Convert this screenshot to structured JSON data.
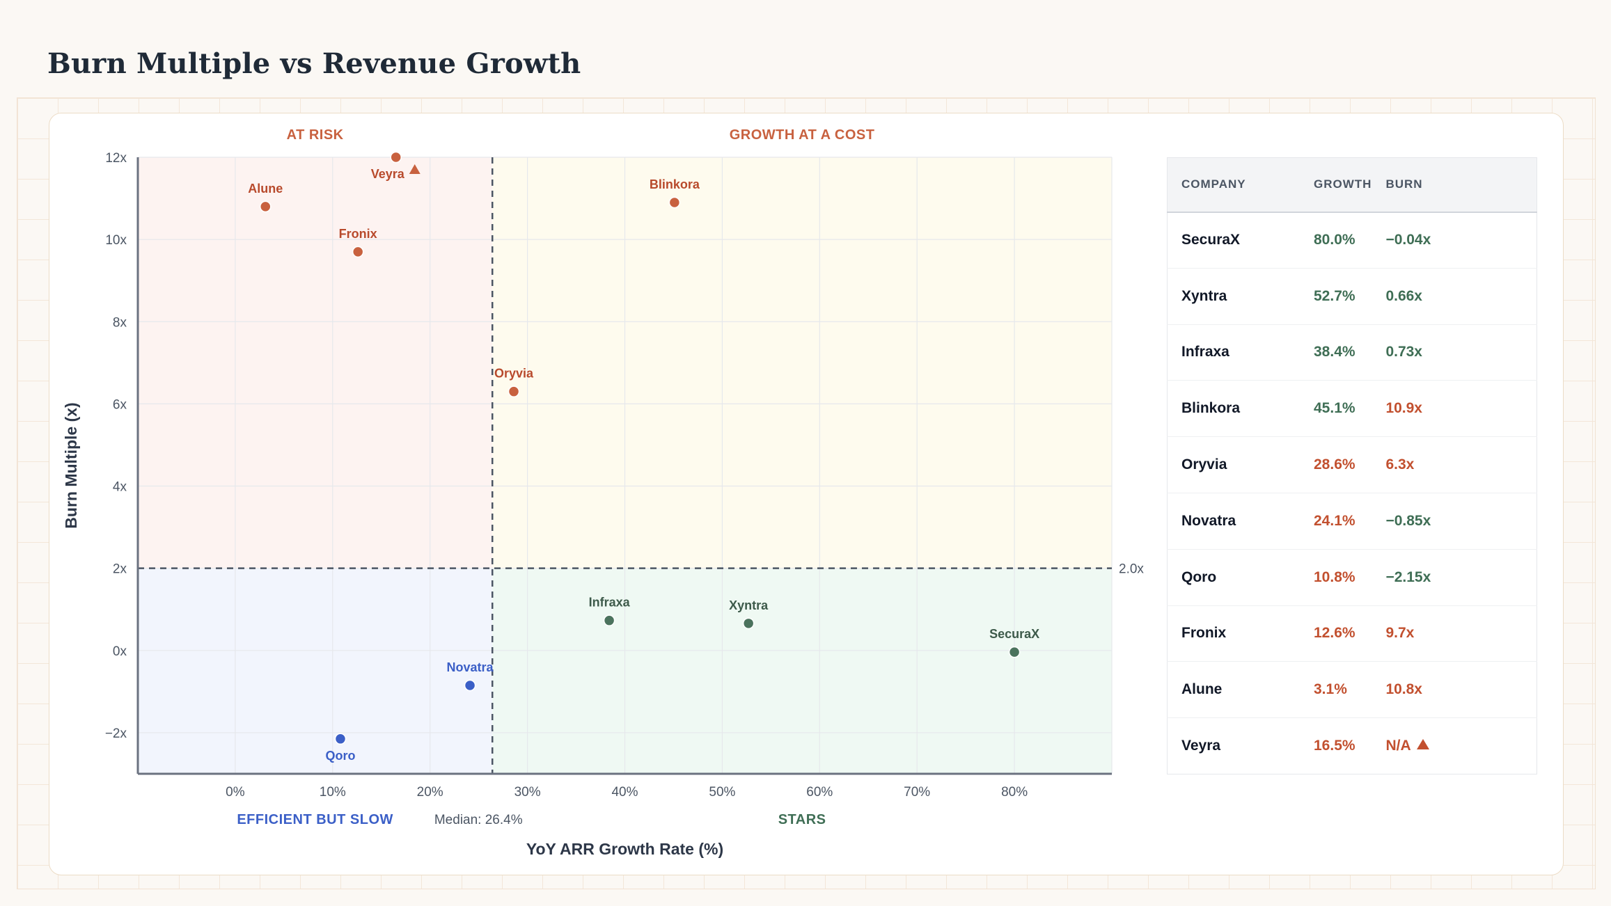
{
  "page": {
    "title": "Burn Multiple vs Revenue Growth"
  },
  "chart_data": {
    "type": "scatter",
    "title": "Burn Multiple vs Revenue Growth",
    "xlabel": "YoY ARR Growth Rate (%)",
    "ylabel": "Burn Multiple (x)",
    "xlim": [
      -10,
      90
    ],
    "ylim": [
      -3,
      12
    ],
    "x_ticks": [
      0,
      10,
      20,
      30,
      40,
      50,
      60,
      70,
      80
    ],
    "x_tick_labels": [
      "0%",
      "10%",
      "20%",
      "30%",
      "40%",
      "50%",
      "60%",
      "70%",
      "80%"
    ],
    "y_ticks": [
      -2,
      0,
      2,
      4,
      6,
      8,
      10,
      12
    ],
    "y_tick_labels": [
      "−2x",
      "0x",
      "2x",
      "4x",
      "6x",
      "8x",
      "10x",
      "12x"
    ],
    "grid": true,
    "median_growth": 26.4,
    "median_label": "Median: 26.4%",
    "burn_threshold": 2.0,
    "threshold_label": "2.0x",
    "quadrants": [
      {
        "label": "AT RISK",
        "color": "#c8613f",
        "fill": "#fdf3f1"
      },
      {
        "label": "GROWTH AT A COST",
        "color": "#c8613f",
        "fill": "#fefbee"
      },
      {
        "label": "EFFICIENT BUT SLOW",
        "color": "#3b5fc7",
        "fill": "#f2f5fd"
      },
      {
        "label": "STARS",
        "color": "#3f6e55",
        "fill": "#eff9f3"
      }
    ],
    "points": [
      {
        "name": "Alune",
        "x": 3.1,
        "y": 10.8,
        "quadrant": "risk"
      },
      {
        "name": "Veyra",
        "x": 16.5,
        "y": 12,
        "quadrant": "risk",
        "capped": true
      },
      {
        "name": "Fronix",
        "x": 12.6,
        "y": 9.7,
        "quadrant": "risk"
      },
      {
        "name": "Blinkora",
        "x": 45.1,
        "y": 10.9,
        "quadrant": "cost"
      },
      {
        "name": "Oryvia",
        "x": 28.6,
        "y": 6.3,
        "quadrant": "cost"
      },
      {
        "name": "Infraxa",
        "x": 38.4,
        "y": 0.73,
        "quadrant": "stars"
      },
      {
        "name": "Xyntra",
        "x": 52.7,
        "y": 0.66,
        "quadrant": "stars"
      },
      {
        "name": "SecuraX",
        "x": 80.0,
        "y": -0.04,
        "quadrant": "stars"
      },
      {
        "name": "Novatra",
        "x": 24.1,
        "y": -0.85,
        "quadrant": "slow"
      },
      {
        "name": "Qoro",
        "x": 10.8,
        "y": -2.15,
        "quadrant": "slow"
      }
    ],
    "colors": {
      "risk": "#c8613f",
      "cost": "#c8613f",
      "stars": "#4b735d",
      "slow": "#3b5fc7",
      "risk_label": "#b84a2c",
      "cost_label": "#b84a2c",
      "stars_label": "#3d5a4a",
      "slow_label": "#3b5fc7"
    }
  },
  "table": {
    "headers": [
      "COMPANY",
      "GROWTH",
      "BURN"
    ],
    "rows": [
      {
        "company": "SecuraX",
        "growth": "80.0%",
        "burn": "−0.04x",
        "growth_class": "good",
        "burn_class": "good",
        "warn": false
      },
      {
        "company": "Xyntra",
        "growth": "52.7%",
        "burn": "0.66x",
        "growth_class": "good",
        "burn_class": "good",
        "warn": false
      },
      {
        "company": "Infraxa",
        "growth": "38.4%",
        "burn": "0.73x",
        "growth_class": "good",
        "burn_class": "good",
        "warn": false
      },
      {
        "company": "Blinkora",
        "growth": "45.1%",
        "burn": "10.9x",
        "growth_class": "good",
        "burn_class": "bad",
        "warn": false
      },
      {
        "company": "Oryvia",
        "growth": "28.6%",
        "burn": "6.3x",
        "growth_class": "bad",
        "burn_class": "bad",
        "warn": false
      },
      {
        "company": "Novatra",
        "growth": "24.1%",
        "burn": "−0.85x",
        "growth_class": "bad",
        "burn_class": "good",
        "warn": false
      },
      {
        "company": "Qoro",
        "growth": "10.8%",
        "burn": "−2.15x",
        "growth_class": "bad",
        "burn_class": "good",
        "warn": false
      },
      {
        "company": "Fronix",
        "growth": "12.6%",
        "burn": "9.7x",
        "growth_class": "bad",
        "burn_class": "bad",
        "warn": false
      },
      {
        "company": "Alune",
        "growth": "3.1%",
        "burn": "10.8x",
        "growth_class": "bad",
        "burn_class": "bad",
        "warn": false
      },
      {
        "company": "Veyra",
        "growth": "16.5%",
        "burn": "N/A",
        "growth_class": "bad",
        "burn_class": "bad",
        "warn": true
      }
    ]
  }
}
